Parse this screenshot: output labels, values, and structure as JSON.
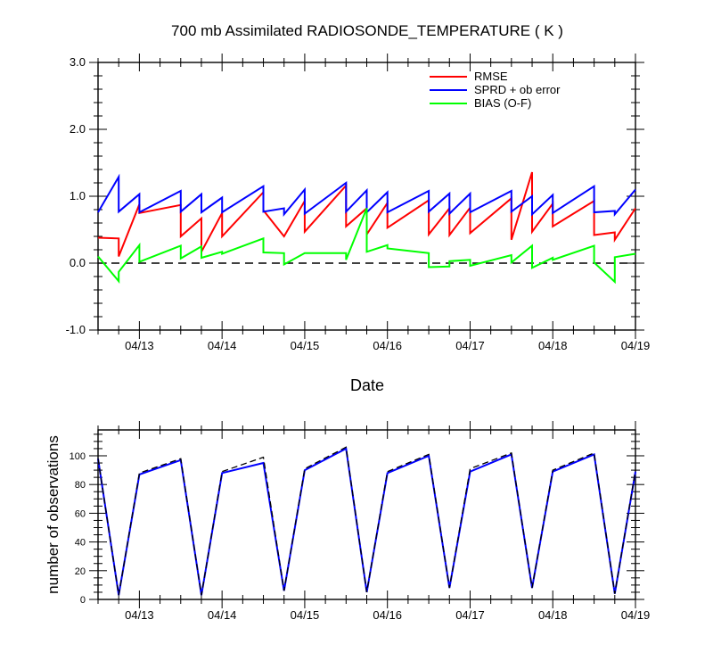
{
  "chart_data": [
    {
      "type": "line",
      "title": "700 mb Assimilated RADIOSONDE_TEMPERATURE ( K )",
      "xlabel": "Date",
      "ylabel": "",
      "x_unit": "day of April",
      "xlim": [
        12.5,
        19.0
      ],
      "ylim": [
        -1.0,
        3.0
      ],
      "yticks": [
        -1.0,
        0.0,
        1.0,
        2.0,
        3.0
      ],
      "ytick_labels": [
        "-1.0",
        "0.0",
        "1.0",
        "2.0",
        "3.0"
      ],
      "xticks": [
        13,
        14,
        15,
        16,
        17,
        18,
        19
      ],
      "xtick_labels": [
        "04/13",
        "04/14",
        "04/15",
        "04/16",
        "04/17",
        "04/18",
        "04/19"
      ],
      "zero_line": true,
      "legend_position": "top-right",
      "series": [
        {
          "name": "RMSE",
          "color": "#ff0000",
          "points": [
            [
              12.5,
              0.38
            ],
            [
              12.75,
              0.37
            ],
            [
              12.75,
              0.1
            ],
            [
              13.0,
              0.88
            ],
            [
              13.0,
              0.75
            ],
            [
              13.5,
              0.87
            ],
            [
              13.5,
              0.4
            ],
            [
              13.75,
              0.67
            ],
            [
              13.75,
              0.17
            ],
            [
              14.0,
              0.75
            ],
            [
              14.0,
              0.4
            ],
            [
              14.5,
              1.06
            ],
            [
              14.5,
              0.79
            ],
            [
              14.75,
              0.4
            ],
            [
              14.75,
              0.4
            ],
            [
              15.0,
              0.93
            ],
            [
              15.0,
              0.47
            ],
            [
              15.5,
              1.16
            ],
            [
              15.5,
              0.55
            ],
            [
              15.75,
              0.82
            ],
            [
              15.75,
              0.43
            ],
            [
              16.0,
              0.9
            ],
            [
              16.0,
              0.53
            ],
            [
              16.5,
              0.94
            ],
            [
              16.5,
              0.43
            ],
            [
              16.75,
              0.82
            ],
            [
              16.75,
              0.42
            ],
            [
              17.0,
              0.83
            ],
            [
              17.0,
              0.45
            ],
            [
              17.5,
              0.97
            ],
            [
              17.5,
              0.35
            ],
            [
              17.75,
              1.36
            ],
            [
              17.75,
              0.47
            ],
            [
              18.0,
              0.89
            ],
            [
              18.0,
              0.55
            ],
            [
              18.5,
              0.93
            ],
            [
              18.5,
              0.42
            ],
            [
              18.75,
              0.46
            ],
            [
              18.75,
              0.35
            ],
            [
              19.0,
              0.82
            ]
          ]
        },
        {
          "name": "SPRD + ob error",
          "color": "#0000ff",
          "points": [
            [
              12.5,
              0.76
            ],
            [
              12.75,
              1.29
            ],
            [
              12.75,
              0.77
            ],
            [
              13.0,
              1.03
            ],
            [
              13.0,
              0.76
            ],
            [
              13.5,
              1.08
            ],
            [
              13.5,
              0.77
            ],
            [
              13.75,
              1.03
            ],
            [
              13.75,
              0.76
            ],
            [
              14.0,
              0.98
            ],
            [
              14.0,
              0.76
            ],
            [
              14.5,
              1.15
            ],
            [
              14.5,
              0.77
            ],
            [
              14.75,
              0.82
            ],
            [
              14.75,
              0.73
            ],
            [
              15.0,
              1.1
            ],
            [
              15.0,
              0.74
            ],
            [
              15.5,
              1.2
            ],
            [
              15.5,
              0.77
            ],
            [
              15.75,
              1.09
            ],
            [
              15.75,
              0.76
            ],
            [
              16.0,
              1.06
            ],
            [
              16.0,
              0.76
            ],
            [
              16.5,
              1.08
            ],
            [
              16.5,
              0.77
            ],
            [
              16.75,
              1.04
            ],
            [
              16.75,
              0.74
            ],
            [
              17.0,
              1.04
            ],
            [
              17.0,
              0.76
            ],
            [
              17.5,
              1.08
            ],
            [
              17.5,
              0.77
            ],
            [
              17.75,
              1.0
            ],
            [
              17.75,
              0.73
            ],
            [
              18.0,
              1.02
            ],
            [
              18.0,
              0.75
            ],
            [
              18.5,
              1.15
            ],
            [
              18.5,
              0.76
            ],
            [
              18.75,
              0.78
            ],
            [
              18.75,
              0.73
            ],
            [
              19.0,
              1.1
            ]
          ]
        },
        {
          "name": "BIAS (O-F)",
          "color": "#00ff00",
          "points": [
            [
              12.5,
              0.1
            ],
            [
              12.75,
              -0.27
            ],
            [
              12.75,
              -0.13
            ],
            [
              13.0,
              0.27
            ],
            [
              13.0,
              0.02
            ],
            [
              13.5,
              0.26
            ],
            [
              13.5,
              0.07
            ],
            [
              13.75,
              0.25
            ],
            [
              13.75,
              0.08
            ],
            [
              14.0,
              0.17
            ],
            [
              14.0,
              0.14
            ],
            [
              14.5,
              0.37
            ],
            [
              14.5,
              0.16
            ],
            [
              14.75,
              0.15
            ],
            [
              14.75,
              -0.02
            ],
            [
              15.0,
              0.15
            ],
            [
              15.0,
              0.15
            ],
            [
              15.5,
              0.15
            ],
            [
              15.5,
              0.05
            ],
            [
              15.75,
              0.82
            ],
            [
              15.75,
              0.17
            ],
            [
              16.0,
              0.27
            ],
            [
              16.0,
              0.22
            ],
            [
              16.5,
              0.15
            ],
            [
              16.5,
              -0.06
            ],
            [
              16.75,
              -0.05
            ],
            [
              16.75,
              0.03
            ],
            [
              17.0,
              0.05
            ],
            [
              17.0,
              -0.04
            ],
            [
              17.5,
              0.12
            ],
            [
              17.5,
              0.01
            ],
            [
              17.75,
              0.26
            ],
            [
              17.75,
              -0.07
            ],
            [
              18.0,
              0.08
            ],
            [
              18.0,
              0.05
            ],
            [
              18.5,
              0.26
            ],
            [
              18.5,
              0.01
            ],
            [
              18.75,
              -0.28
            ],
            [
              18.75,
              0.09
            ],
            [
              19.0,
              0.14
            ]
          ]
        }
      ]
    },
    {
      "type": "line",
      "title": "",
      "xlabel": "",
      "ylabel": "number of observations",
      "x_unit": "day of April",
      "xlim": [
        12.5,
        19.0
      ],
      "ylim": [
        0,
        118
      ],
      "yticks": [
        0,
        20,
        40,
        60,
        80,
        100
      ],
      "ytick_labels": [
        "0",
        "20",
        "40",
        "60",
        "80",
        "100"
      ],
      "xticks": [
        13,
        14,
        15,
        16,
        17,
        18,
        19
      ],
      "xtick_labels": [
        "04/13",
        "04/14",
        "04/15",
        "04/16",
        "04/17",
        "04/18",
        "04/19"
      ],
      "series": [
        {
          "color": "#0000ff",
          "style": "solid",
          "points": [
            [
              12.5,
              98
            ],
            [
              12.75,
              3
            ],
            [
              13.0,
              87
            ],
            [
              13.5,
              97
            ],
            [
              13.75,
              3
            ],
            [
              14.0,
              88
            ],
            [
              14.5,
              95
            ],
            [
              14.75,
              6
            ],
            [
              15.0,
              90
            ],
            [
              15.5,
              105
            ],
            [
              15.75,
              5
            ],
            [
              16.0,
              88
            ],
            [
              16.5,
              100
            ],
            [
              16.75,
              8
            ],
            [
              17.0,
              89
            ],
            [
              17.5,
              101
            ],
            [
              17.75,
              8
            ],
            [
              18.0,
              89
            ],
            [
              18.5,
              101
            ],
            [
              18.75,
              4
            ],
            [
              19.0,
              89
            ]
          ]
        },
        {
          "color": "#000000",
          "style": "dashed",
          "points": [
            [
              12.5,
              98
            ],
            [
              12.75,
              3
            ],
            [
              13.0,
              88
            ],
            [
              13.5,
              98
            ],
            [
              13.75,
              3
            ],
            [
              14.0,
              89
            ],
            [
              14.5,
              99
            ],
            [
              14.75,
              6
            ],
            [
              15.0,
              91
            ],
            [
              15.5,
              106
            ],
            [
              15.75,
              5
            ],
            [
              16.0,
              89
            ],
            [
              16.5,
              101
            ],
            [
              16.75,
              8
            ],
            [
              17.0,
              91
            ],
            [
              17.5,
              102
            ],
            [
              17.75,
              8
            ],
            [
              18.0,
              90
            ],
            [
              18.5,
              102
            ],
            [
              18.75,
              4
            ],
            [
              19.0,
              90
            ]
          ]
        }
      ]
    }
  ]
}
